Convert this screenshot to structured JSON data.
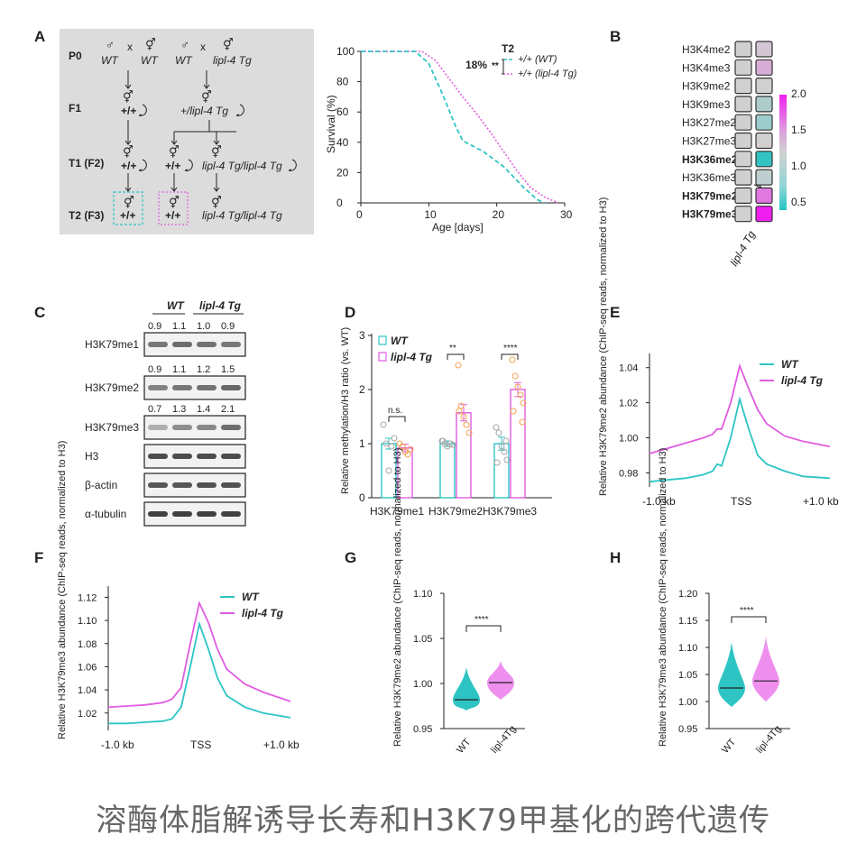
{
  "caption": "溶酶体脂解诱导长寿和H3K79甲基化的跨代遗传",
  "colors": {
    "wt": "#2ec4c4",
    "tg": "#e05ce0",
    "text": "#222222",
    "panelA_bg": "#dcdcdc"
  },
  "panelA": {
    "label": "A",
    "gen_labels": [
      "P0",
      "F1",
      "T1 (F2)",
      "T2 (F3)"
    ],
    "cross": "x",
    "p0": [
      "WT",
      "WT",
      "WT",
      "lipl-4 Tg"
    ],
    "f1": [
      "+/+",
      "+/lipl-4 Tg"
    ],
    "t1": [
      "+/+",
      "+/+",
      "lipl-4 Tg/lipl-4 Tg"
    ],
    "t2": [
      "+/+",
      "+/+",
      "lipl-4 Tg/lipl-4 Tg"
    ],
    "male": "♂",
    "herm": "⚥"
  },
  "survival": {
    "title": "T2",
    "pct": "18%",
    "sig": "**",
    "legend": [
      "+/+ (WT)",
      "+/+ (lipl-4 Tg)"
    ],
    "xlabel": "Age [days]",
    "ylabel": "Survival (%)",
    "xticks": [
      0,
      10,
      20,
      30
    ],
    "yticks": [
      0,
      20,
      40,
      60,
      80,
      100
    ],
    "wt": [
      [
        0,
        100
      ],
      [
        8,
        100
      ],
      [
        10,
        92
      ],
      [
        12,
        72
      ],
      [
        14,
        50
      ],
      [
        15,
        41
      ],
      [
        18,
        34
      ],
      [
        21,
        24
      ],
      [
        24,
        10
      ],
      [
        26,
        2
      ],
      [
        27,
        0
      ]
    ],
    "tg": [
      [
        0,
        100
      ],
      [
        9,
        100
      ],
      [
        11,
        94
      ],
      [
        13,
        82
      ],
      [
        15,
        70
      ],
      [
        17,
        59
      ],
      [
        19,
        47
      ],
      [
        21,
        34
      ],
      [
        23,
        21
      ],
      [
        25,
        10
      ],
      [
        27,
        4
      ],
      [
        29,
        0
      ]
    ]
  },
  "heatmap": {
    "label": "B",
    "rows": [
      "H3K4me2",
      "H3K4me3",
      "H3K9me2",
      "H3K9me3",
      "H3K27me2",
      "H3K27me3",
      "H3K36me2",
      "H3K36me3",
      "H3K79me2",
      "H3K79me3"
    ],
    "row_colors": [
      "#222222",
      "#222222",
      "#222222",
      "#222222",
      "#222222",
      "#222222",
      "#2ec4c4",
      "#222222",
      "#e05ce0",
      "#e05ce0"
    ],
    "cols": [
      "WT",
      "lipl-4 Tg"
    ],
    "values": [
      [
        1.0,
        1.05
      ],
      [
        1.0,
        1.2
      ],
      [
        1.0,
        1.0
      ],
      [
        1.0,
        0.9
      ],
      [
        1.0,
        0.85
      ],
      [
        1.0,
        1.0
      ],
      [
        1.0,
        0.55
      ],
      [
        1.0,
        0.95
      ],
      [
        1.0,
        1.5
      ],
      [
        1.0,
        2.0
      ]
    ],
    "scale_ticks": [
      "2.0",
      "1.5",
      "1.0",
      "0.5"
    ]
  },
  "western": {
    "label": "C",
    "groups": [
      "WT",
      "lipl-4 Tg"
    ],
    "rows": [
      {
        "name": "H3K79me1",
        "values": [
          "0.9",
          "1.1",
          "1.0",
          "0.9"
        ]
      },
      {
        "name": "H3K79me2",
        "values": [
          "0.9",
          "1.1",
          "1.2",
          "1.5"
        ]
      },
      {
        "name": "H3K79me3",
        "values": [
          "0.7",
          "1.3",
          "1.4",
          "2.1"
        ]
      },
      {
        "name": "H3",
        "values": []
      },
      {
        "name": "β-actin",
        "values": []
      },
      {
        "name": "α-tubulin",
        "values": []
      }
    ]
  },
  "panelD": {
    "label": "D",
    "chart_data": {
      "type": "bar",
      "categories": [
        "H3K79me1",
        "H3K79me2",
        "H3K79me3"
      ],
      "series": [
        {
          "name": "WT",
          "values": [
            1.0,
            1.0,
            1.0
          ],
          "err": [
            0.1,
            0.05,
            0.12
          ]
        },
        {
          "name": "lipl-4 Tg",
          "values": [
            0.92,
            1.57,
            2.0
          ],
          "err": [
            0.07,
            0.15,
            0.13
          ]
        }
      ],
      "points": {
        "WT": [
          [
            1.35,
            1.0,
            0.5,
            0.95,
            1.1
          ],
          [
            1.05,
            1.0,
            0.95,
            1.0,
            0.98,
            1.05
          ],
          [
            1.3,
            1.2,
            0.95,
            0.85,
            0.7,
            0.65,
            1.05
          ]
        ],
        "lipl-4 Tg": [
          [
            1.0,
            0.95,
            0.85,
            0.8,
            0.9
          ],
          [
            2.45,
            1.7,
            1.5,
            1.35,
            1.2,
            1.6
          ],
          [
            2.55,
            2.25,
            2.05,
            1.9,
            1.75,
            1.6,
            1.4
          ]
        ]
      },
      "ylabel": "Relative methylation/H3 ratio (vs. WT)",
      "ylim": [
        0,
        3
      ],
      "yticks": [
        0,
        1,
        2,
        3
      ],
      "sig": [
        "n.s.",
        "**",
        "****"
      ]
    }
  },
  "panelE": {
    "label": "E",
    "chart_data": {
      "type": "line",
      "ylabel": "Relative H3K79me2 abundance (ChIP-seq reads, normalized to H3)",
      "xticks": [
        "-1.0 kb",
        "TSS",
        "+1.0 kb"
      ],
      "yticks": [
        0.98,
        1.0,
        1.02,
        1.04
      ],
      "ylim": [
        0.972,
        1.045
      ],
      "series": [
        {
          "name": "WT",
          "x": [
            -1,
            -0.8,
            -0.6,
            -0.4,
            -0.3,
            -0.25,
            -0.2,
            -0.1,
            0,
            0.1,
            0.2,
            0.3,
            0.5,
            0.7,
            1
          ],
          "y": [
            0.975,
            0.976,
            0.977,
            0.979,
            0.981,
            0.985,
            0.984,
            1.0,
            1.022,
            1.005,
            0.99,
            0.985,
            0.981,
            0.978,
            0.977
          ]
        },
        {
          "name": "lipl-4 Tg",
          "x": [
            -1,
            -0.8,
            -0.6,
            -0.4,
            -0.3,
            -0.25,
            -0.2,
            -0.1,
            0,
            0.1,
            0.2,
            0.3,
            0.5,
            0.7,
            1
          ],
          "y": [
            0.991,
            0.994,
            0.997,
            1.0,
            1.002,
            1.005,
            1.005,
            1.02,
            1.041,
            1.028,
            1.016,
            1.008,
            1.001,
            0.998,
            0.995
          ]
        }
      ]
    }
  },
  "panelF": {
    "label": "F",
    "chart_data": {
      "type": "line",
      "ylabel": "Relative H3K79me3 abundance (ChIP-seq reads, normalized to H3)",
      "xticks": [
        "-1.0 kb",
        "TSS",
        "+1.0 kb"
      ],
      "yticks": [
        1.02,
        1.04,
        1.06,
        1.08,
        1.1,
        1.12
      ],
      "ylim": [
        1.005,
        1.125
      ],
      "series": [
        {
          "name": "WT",
          "x": [
            -1,
            -0.8,
            -0.6,
            -0.4,
            -0.3,
            -0.25,
            -0.2,
            -0.1,
            0,
            0.1,
            0.2,
            0.3,
            0.5,
            0.7,
            1
          ],
          "y": [
            1.011,
            1.011,
            1.012,
            1.013,
            1.015,
            1.02,
            1.025,
            1.06,
            1.097,
            1.075,
            1.05,
            1.035,
            1.025,
            1.02,
            1.016
          ]
        },
        {
          "name": "lipl-4 Tg",
          "x": [
            -1,
            -0.8,
            -0.6,
            -0.4,
            -0.3,
            -0.25,
            -0.2,
            -0.1,
            0,
            0.1,
            0.2,
            0.3,
            0.5,
            0.7,
            1
          ],
          "y": [
            1.025,
            1.026,
            1.027,
            1.029,
            1.032,
            1.037,
            1.042,
            1.08,
            1.115,
            1.098,
            1.075,
            1.058,
            1.045,
            1.038,
            1.03
          ]
        }
      ]
    }
  },
  "panelG": {
    "label": "G",
    "chart_data": {
      "type": "violin",
      "categories": [
        "WT",
        "lipl-4Tg"
      ],
      "medians": [
        0.982,
        1.001
      ],
      "ranges": [
        [
          0.97,
          1.018
        ],
        [
          0.982,
          1.025
        ]
      ],
      "ylabel": "Relative H3K79me2 abundance (ChIP-seq reads, normalized to H3)",
      "yticks": [
        0.95,
        1.0,
        1.05,
        1.1
      ],
      "ylim": [
        0.95,
        1.1
      ],
      "sig": "****"
    }
  },
  "panelH": {
    "label": "H",
    "chart_data": {
      "type": "violin",
      "categories": [
        "WT",
        "lipl-4Tg"
      ],
      "medians": [
        1.025,
        1.038
      ],
      "ranges": [
        [
          0.99,
          1.11
        ],
        [
          1.0,
          1.12
        ]
      ],
      "ylabel": "Relative H3K79me3 abundance (ChIP-seq reads, normalized to H3)",
      "yticks": [
        0.95,
        1.0,
        1.05,
        1.1,
        1.15,
        1.2
      ],
      "ylim": [
        0.95,
        1.2
      ],
      "sig": "****"
    }
  }
}
